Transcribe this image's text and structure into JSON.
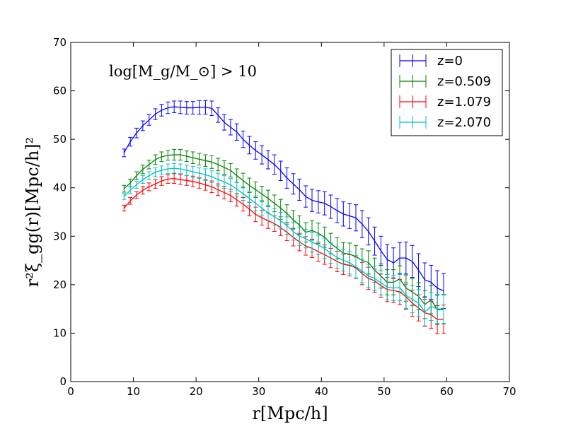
{
  "chart_data": {
    "type": "line",
    "title": "",
    "xlabel": "r[Mpc/h]",
    "ylabel": "r²ξ_gg(r)[Mpc/h]²",
    "xlim": [
      0,
      70
    ],
    "ylim": [
      0,
      70
    ],
    "xticks": [
      "0",
      "10",
      "20",
      "30",
      "40",
      "50",
      "60",
      "70"
    ],
    "yticks": [
      "0",
      "10",
      "20",
      "30",
      "40",
      "50",
      "60",
      "70"
    ],
    "annotation": "log[M_g/M_⊙] > 10",
    "legend_position": "top-right",
    "x": [
      8.5,
      9.5,
      10.5,
      11.5,
      12.5,
      13.5,
      14.5,
      15.5,
      16.5,
      17.5,
      18.5,
      19.5,
      20.5,
      21.5,
      22.5,
      23.5,
      24.5,
      25.5,
      26.5,
      27.5,
      28.5,
      29.5,
      30.5,
      31.5,
      32.5,
      33.5,
      34.5,
      35.5,
      36.5,
      37.5,
      38.5,
      39.5,
      40.5,
      41.5,
      42.5,
      43.5,
      44.5,
      45.5,
      46.5,
      47.5,
      48.5,
      49.5,
      50.5,
      51.5,
      52.5,
      53.5,
      54.5,
      55.5,
      56.5,
      57.5,
      58.5,
      59.5
    ],
    "series": [
      {
        "name": "z=0",
        "color": "#0000ff",
        "values": [
          47.2,
          49.5,
          51.3,
          52.8,
          54.0,
          55.2,
          56.0,
          56.5,
          56.7,
          56.6,
          56.5,
          56.5,
          56.6,
          56.6,
          56.4,
          55.0,
          53.5,
          52.5,
          51.5,
          50.0,
          48.8,
          47.7,
          46.8,
          45.8,
          44.8,
          43.5,
          42.0,
          40.8,
          39.6,
          38.2,
          37.4,
          37.1,
          36.8,
          36.1,
          35.3,
          34.6,
          34.2,
          33.8,
          32.5,
          31.0,
          29.0,
          27.0,
          25.2,
          24.5,
          25.5,
          25.5,
          24.8,
          23.0,
          21.0,
          20.5,
          19.3,
          18.7
        ],
        "errors": [
          0.8,
          0.9,
          1.0,
          1.0,
          1.1,
          1.1,
          1.2,
          1.2,
          1.2,
          1.3,
          1.3,
          1.3,
          1.4,
          1.4,
          1.5,
          1.5,
          1.6,
          1.6,
          1.7,
          1.7,
          1.8,
          1.8,
          1.9,
          1.9,
          2.0,
          2.0,
          2.1,
          2.1,
          2.2,
          2.2,
          2.3,
          2.3,
          2.4,
          2.4,
          2.5,
          2.5,
          2.6,
          2.7,
          2.8,
          2.8,
          2.9,
          3.0,
          3.1,
          3.1,
          3.2,
          3.3,
          3.3,
          3.4,
          3.5,
          3.5,
          3.6,
          3.6
        ]
      },
      {
        "name": "z=0.509",
        "color": "#008000",
        "values": [
          39.8,
          41.0,
          42.5,
          43.8,
          44.8,
          45.8,
          46.4,
          46.7,
          46.8,
          46.8,
          46.5,
          46.2,
          45.9,
          45.6,
          45.3,
          44.8,
          44.2,
          43.6,
          42.5,
          41.5,
          40.5,
          39.6,
          38.7,
          37.8,
          36.8,
          35.8,
          34.7,
          33.4,
          32.3,
          30.8,
          31.2,
          30.6,
          29.8,
          28.5,
          27.5,
          26.5,
          26.3,
          25.8,
          25.0,
          24.6,
          23.0,
          21.8,
          20.5,
          20.5,
          21.2,
          19.3,
          18.5,
          17.6,
          15.9,
          16.9,
          14.8,
          14.9
        ],
        "errors": [
          0.7,
          0.8,
          0.8,
          0.9,
          0.9,
          1.0,
          1.0,
          1.0,
          1.1,
          1.1,
          1.1,
          1.2,
          1.2,
          1.2,
          1.3,
          1.3,
          1.4,
          1.4,
          1.4,
          1.5,
          1.5,
          1.6,
          1.6,
          1.7,
          1.7,
          1.8,
          1.8,
          1.9,
          1.9,
          2.0,
          2.0,
          2.1,
          2.1,
          2.1,
          2.2,
          2.2,
          2.3,
          2.3,
          2.4,
          2.4,
          2.5,
          2.5,
          2.6,
          2.6,
          2.7,
          2.7,
          2.8,
          2.8,
          2.9,
          2.9,
          3.0,
          3.0
        ]
      },
      {
        "name": "z=1.079",
        "color": "#ff0000",
        "values": [
          35.8,
          37.3,
          38.5,
          39.5,
          40.2,
          40.8,
          41.4,
          41.8,
          41.9,
          41.7,
          41.5,
          41.3,
          41.0,
          40.6,
          40.2,
          39.6,
          39.0,
          38.4,
          37.5,
          36.6,
          35.6,
          34.5,
          33.8,
          33.2,
          32.6,
          31.8,
          30.8,
          29.8,
          28.8,
          28.0,
          27.5,
          26.8,
          26.2,
          25.5,
          24.8,
          24.2,
          24.0,
          23.5,
          22.3,
          21.3,
          20.8,
          19.8,
          19.0,
          18.8,
          18.5,
          17.5,
          16.2,
          15.2,
          14.2,
          13.8,
          12.8,
          12.9
        ],
        "errors": [
          0.6,
          0.7,
          0.7,
          0.8,
          0.8,
          0.9,
          0.9,
          0.9,
          1.0,
          1.0,
          1.0,
          1.1,
          1.1,
          1.1,
          1.2,
          1.2,
          1.3,
          1.3,
          1.3,
          1.4,
          1.4,
          1.5,
          1.5,
          1.6,
          1.6,
          1.7,
          1.7,
          1.8,
          1.8,
          1.9,
          1.9,
          2.0,
          2.0,
          2.0,
          2.1,
          2.1,
          2.2,
          2.2,
          2.3,
          2.3,
          2.4,
          2.4,
          2.5,
          2.5,
          2.6,
          2.6,
          2.7,
          2.7,
          2.8,
          2.8,
          2.9,
          2.9
        ]
      },
      {
        "name": "z=2.070",
        "color": "#00bfbf",
        "values": [
          38.2,
          39.5,
          40.6,
          41.7,
          42.5,
          43.2,
          43.6,
          43.9,
          44.0,
          43.9,
          43.6,
          43.3,
          43.0,
          42.7,
          42.3,
          41.7,
          41.2,
          40.6,
          39.7,
          38.8,
          37.8,
          36.8,
          35.8,
          34.8,
          34.0,
          33.2,
          32.2,
          31.0,
          30.0,
          29.5,
          28.8,
          28.2,
          27.5,
          26.5,
          25.6,
          25.0,
          24.5,
          23.7,
          22.8,
          21.8,
          21.3,
          20.4,
          19.5,
          19.3,
          19.4,
          17.8,
          17.0,
          16.2,
          14.4,
          15.5,
          15.0,
          15.0
        ],
        "errors": [
          0.6,
          0.7,
          0.7,
          0.8,
          0.8,
          0.9,
          0.9,
          1.0,
          1.0,
          1.0,
          1.1,
          1.1,
          1.1,
          1.2,
          1.2,
          1.3,
          1.3,
          1.3,
          1.4,
          1.4,
          1.5,
          1.5,
          1.6,
          1.6,
          1.7,
          1.7,
          1.8,
          1.8,
          1.9,
          1.9,
          2.0,
          2.0,
          2.1,
          2.1,
          2.2,
          2.2,
          2.3,
          2.3,
          2.4,
          2.4,
          2.5,
          2.5,
          2.6,
          2.6,
          2.7,
          2.7,
          2.8,
          2.8,
          2.9,
          2.9,
          3.0,
          3.0
        ]
      }
    ]
  }
}
